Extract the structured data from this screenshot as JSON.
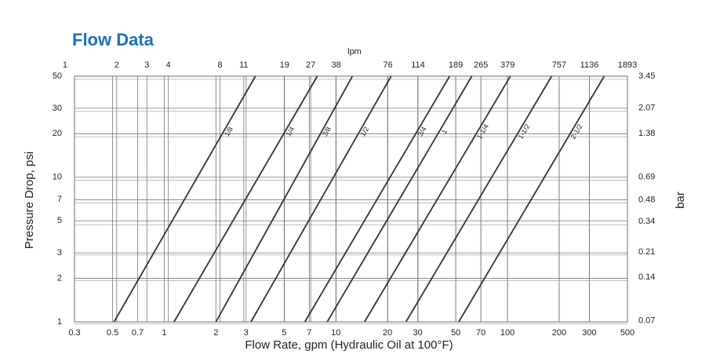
{
  "chart_data": {
    "type": "line",
    "title": "Flow Data",
    "xlabel": "Flow Rate, gpm (Hydraulic Oil at 100°F)",
    "ylabel": "Pressure Drop, psi",
    "x2label": "lpm",
    "y2label": "bar",
    "xscale": "log",
    "yscale": "log",
    "xlim": [
      0.3,
      500
    ],
    "ylim": [
      1,
      50
    ],
    "xticks": [
      0.3,
      0.5,
      0.7,
      1,
      2,
      3,
      5,
      7,
      10,
      20,
      30,
      50,
      70,
      100,
      200,
      300,
      500
    ],
    "yticks": [
      1,
      2,
      3,
      5,
      7,
      10,
      20,
      30,
      50
    ],
    "x2lim": [
      1.1355,
      1892.5
    ],
    "x2ticks": [
      1,
      2,
      3,
      4,
      8,
      11,
      19,
      27,
      38,
      76,
      114,
      189,
      265,
      379,
      757,
      1136,
      1893
    ],
    "y2lim": [
      0.0689,
      3.447
    ],
    "y2ticks": [
      3.45,
      2.07,
      1.38,
      0.69,
      0.48,
      0.34,
      0.21,
      0.14,
      0.07
    ],
    "grid": true,
    "series": [
      {
        "name": "1/8",
        "color": "#333333",
        "x": [
          0.51,
          3.4
        ],
        "values": [
          1,
          50
        ]
      },
      {
        "name": "1/4",
        "color": "#333333",
        "x": [
          1.14,
          7.8
        ],
        "values": [
          1,
          50
        ]
      },
      {
        "name": "3/8",
        "color": "#333333",
        "x": [
          2.0,
          12.5
        ],
        "values": [
          1,
          50
        ]
      },
      {
        "name": "1/2",
        "color": "#333333",
        "x": [
          3.2,
          21
        ],
        "values": [
          1,
          50
        ]
      },
      {
        "name": "3/4",
        "color": "#333333",
        "x": [
          6.6,
          46
        ],
        "values": [
          1,
          50
        ]
      },
      {
        "name": "1",
        "color": "#333333",
        "x": [
          8.9,
          62
        ],
        "values": [
          1,
          50
        ]
      },
      {
        "name": "1-1/4",
        "color": "#333333",
        "x": [
          14.7,
          104
        ],
        "values": [
          1,
          50
        ]
      },
      {
        "name": "1-1/2",
        "color": "#333333",
        "x": [
          25.6,
          181
        ],
        "values": [
          1,
          50
        ]
      },
      {
        "name": "2-1/2",
        "color": "#333333",
        "x": [
          52,
          366
        ],
        "values": [
          1,
          50
        ]
      }
    ]
  }
}
